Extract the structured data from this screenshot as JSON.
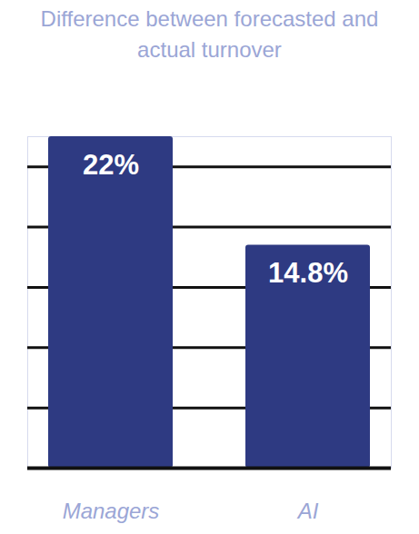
{
  "chart_data": {
    "type": "bar",
    "title": "Difference between forecasted and actual turnover",
    "categories": [
      "Managers",
      "AI"
    ],
    "values": [
      22,
      14.8
    ],
    "value_labels": [
      "22%",
      "14.8%"
    ],
    "color": "#2e3a82",
    "ylim": [
      0,
      22
    ],
    "yticks": [
      0,
      4,
      8,
      12,
      16,
      20
    ],
    "grid": true,
    "data_labels": true,
    "tick_labels": "x"
  }
}
